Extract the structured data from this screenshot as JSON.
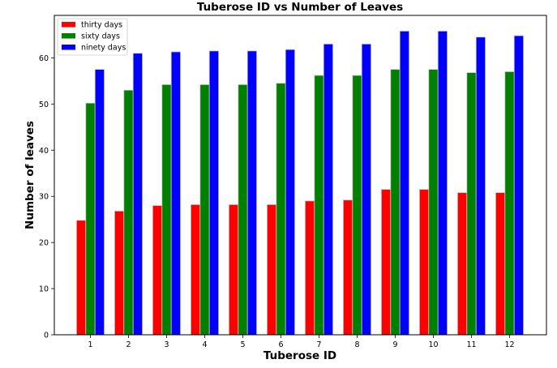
{
  "chart_data": {
    "type": "bar",
    "title": "Tuberose ID vs Number of Leaves",
    "xlabel": "Tuberose ID",
    "ylabel": "Number of leaves",
    "categories": [
      "1",
      "2",
      "3",
      "4",
      "5",
      "6",
      "7",
      "8",
      "9",
      "10",
      "11",
      "12"
    ],
    "series": [
      {
        "name": "thirty days",
        "color": "#ff0000",
        "values": [
          24.8,
          26.8,
          28.0,
          28.2,
          28.2,
          28.2,
          29.0,
          29.2,
          31.5,
          31.5,
          30.8,
          30.8
        ]
      },
      {
        "name": "sixty days",
        "color": "#008000",
        "values": [
          50.2,
          53.0,
          54.2,
          54.2,
          54.2,
          54.5,
          56.2,
          56.2,
          57.5,
          57.5,
          56.8,
          57.0
        ]
      },
      {
        "name": "ninety days",
        "color": "#0000ff",
        "values": [
          57.5,
          61.0,
          61.3,
          61.5,
          61.5,
          61.8,
          63.0,
          63.0,
          65.8,
          65.8,
          64.5,
          64.8
        ]
      }
    ],
    "ylim": [
      0,
      69.2
    ],
    "yticks": [
      0,
      10,
      20,
      30,
      40,
      50,
      60
    ],
    "legend_position": "upper-left",
    "grid": false,
    "bar_edge_color": "#c8c8c8"
  }
}
